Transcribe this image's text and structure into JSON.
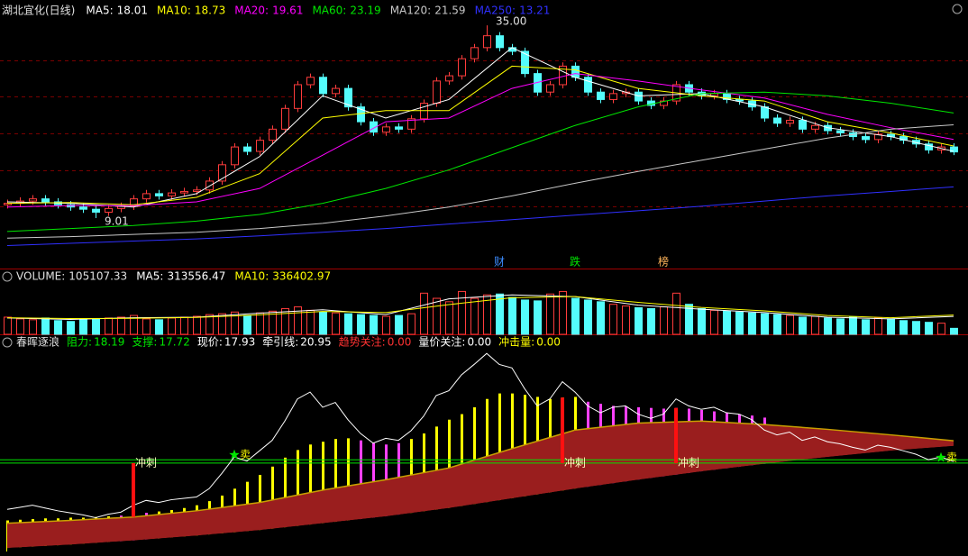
{
  "chart_data": [
    {
      "type": "candlestick",
      "title": "湖北宜化(日线)",
      "open": [
        10.8,
        11.0,
        11.3,
        11.6,
        11.2,
        10.8,
        10.5,
        10.2,
        9.8,
        10.3,
        10.6,
        11.6,
        12.3,
        12.0,
        12.4,
        12.6,
        12.8,
        14.0,
        16.2,
        18.6,
        18.0,
        19.5,
        21.0,
        23.8,
        27.0,
        28.0,
        25.8,
        26.5,
        24.0,
        22.0,
        20.6,
        21.3,
        21.0,
        22.4,
        24.5,
        27.5,
        28.2,
        30.5,
        32.0,
        33.6,
        32.0,
        31.5,
        28.5,
        26.0,
        27.0,
        29.5,
        28.0,
        26.0,
        25.0,
        25.8,
        26.0,
        24.8,
        24.2,
        24.8,
        27.0,
        26.0,
        25.5,
        25.8,
        25.0,
        24.8,
        24.0,
        22.5,
        21.8,
        22.2,
        21.0,
        21.5,
        20.8,
        20.5,
        20.0,
        19.6,
        20.3,
        20.0,
        19.5,
        19.0,
        18.2,
        18.6
      ],
      "close": [
        11.0,
        11.3,
        11.6,
        11.2,
        10.8,
        10.5,
        10.2,
        9.8,
        10.3,
        10.6,
        11.6,
        12.3,
        12.0,
        12.4,
        12.6,
        12.8,
        14.0,
        16.2,
        18.6,
        18.0,
        19.5,
        21.0,
        23.8,
        27.0,
        28.0,
        25.8,
        26.5,
        24.0,
        22.0,
        20.6,
        21.3,
        21.0,
        22.4,
        24.5,
        27.5,
        28.2,
        30.5,
        32.0,
        33.6,
        32.0,
        31.5,
        28.5,
        26.0,
        27.0,
        29.5,
        28.0,
        26.0,
        25.0,
        25.8,
        26.0,
        24.8,
        24.2,
        24.8,
        27.0,
        26.0,
        25.5,
        25.8,
        25.0,
        24.8,
        24.0,
        22.5,
        21.8,
        22.2,
        21.0,
        21.5,
        20.8,
        20.5,
        20.0,
        19.6,
        20.3,
        20.0,
        19.5,
        19.0,
        18.2,
        18.6,
        17.93
      ],
      "high": [
        11.5,
        11.8,
        12.1,
        12.1,
        11.7,
        11.3,
        11.0,
        10.7,
        10.8,
        11.1,
        12.1,
        12.8,
        12.8,
        12.9,
        13.1,
        13.3,
        14.5,
        16.7,
        19.1,
        19.1,
        20.0,
        21.5,
        24.3,
        27.5,
        28.5,
        28.5,
        27.0,
        27.0,
        24.5,
        22.5,
        21.8,
        21.8,
        22.9,
        25.0,
        28.0,
        28.7,
        31.0,
        32.5,
        35.0,
        34.1,
        32.5,
        32.0,
        29.0,
        27.5,
        30.0,
        30.0,
        28.5,
        26.5,
        26.3,
        26.5,
        26.5,
        25.3,
        25.3,
        27.5,
        27.5,
        26.5,
        26.3,
        26.3,
        25.5,
        25.3,
        24.5,
        23.0,
        22.7,
        22.7,
        22.0,
        22.0,
        21.3,
        21.0,
        20.5,
        20.8,
        20.8,
        20.5,
        20.0,
        19.5,
        19.1,
        19.1
      ],
      "low": [
        10.3,
        10.5,
        10.8,
        10.7,
        10.3,
        10.0,
        9.7,
        9.01,
        9.3,
        9.8,
        10.1,
        11.1,
        11.5,
        11.5,
        11.9,
        12.1,
        12.3,
        13.5,
        15.7,
        17.5,
        17.5,
        19.0,
        20.5,
        23.3,
        26.5,
        25.3,
        25.3,
        23.5,
        21.5,
        20.1,
        20.1,
        20.5,
        20.5,
        21.9,
        24.0,
        27.0,
        27.7,
        30.0,
        31.5,
        31.5,
        31.0,
        28.0,
        25.5,
        25.5,
        26.5,
        27.5,
        25.5,
        24.5,
        24.5,
        25.3,
        24.3,
        23.7,
        23.7,
        24.3,
        25.5,
        25.0,
        25.0,
        24.5,
        24.3,
        23.5,
        22.0,
        21.3,
        21.3,
        20.5,
        20.5,
        20.3,
        20.0,
        19.5,
        19.1,
        19.1,
        19.5,
        19.0,
        18.5,
        17.7,
        17.7,
        17.5
      ],
      "up_color": "#ff3c3c",
      "down_color": "#54fcfc",
      "ylim": [
        2.2,
        36.6
      ],
      "grid_lines": [
        30.3,
        25.4,
        20.4,
        15.5,
        10.6
      ],
      "series": [
        {
          "label": "MA5:",
          "value": 18.01,
          "color": "#ffffff",
          "x": [
            0,
            5,
            10,
            15,
            20,
            25,
            30,
            35,
            40,
            45,
            50,
            55,
            60,
            65,
            70,
            75
          ],
          "values": [
            11.2,
            11.0,
            10.5,
            12.3,
            17.3,
            25.5,
            22.5,
            25.0,
            32.0,
            28.0,
            25.5,
            25.8,
            24.0,
            21.2,
            20.0,
            18.01
          ]
        },
        {
          "label": "MA10:",
          "value": 18.73,
          "color": "#ffff00",
          "x": [
            0,
            5,
            10,
            15,
            20,
            25,
            30,
            35,
            40,
            45,
            50,
            55,
            60,
            65,
            70,
            75
          ],
          "values": [
            11.0,
            11.1,
            10.8,
            11.8,
            15.0,
            22.5,
            23.5,
            23.5,
            29.5,
            29.0,
            26.5,
            25.5,
            24.8,
            22.0,
            20.5,
            18.73
          ]
        },
        {
          "label": "MA20:",
          "value": 19.61,
          "color": "#ff00ff",
          "x": [
            0,
            5,
            10,
            15,
            20,
            25,
            30,
            35,
            40,
            45,
            50,
            55,
            60,
            65,
            70,
            75
          ],
          "values": [
            10.5,
            10.7,
            10.7,
            11.2,
            13.0,
            17.5,
            22.0,
            22.5,
            26.5,
            28.5,
            27.5,
            26.3,
            25.2,
            23.0,
            21.2,
            19.61
          ]
        },
        {
          "label": "MA60:",
          "value": 23.19,
          "color": "#00e600",
          "x": [
            0,
            5,
            10,
            15,
            20,
            25,
            30,
            35,
            40,
            45,
            50,
            55,
            60,
            65,
            70,
            75
          ],
          "values": [
            7.2,
            7.6,
            8.0,
            8.6,
            9.5,
            11.0,
            13.0,
            15.5,
            18.5,
            21.5,
            24.0,
            25.8,
            26.0,
            25.5,
            24.5,
            23.19
          ]
        },
        {
          "label": "MA120:",
          "value": 21.59,
          "color": "#c8c8c8",
          "x": [
            0,
            5,
            10,
            15,
            20,
            25,
            30,
            35,
            40,
            45,
            50,
            55,
            60,
            65,
            70,
            75
          ],
          "values": [
            6.3,
            6.5,
            6.8,
            7.1,
            7.6,
            8.3,
            9.3,
            10.5,
            12.0,
            13.7,
            15.3,
            16.8,
            18.3,
            19.8,
            21.0,
            21.59
          ]
        },
        {
          "label": "MA250:",
          "value": 13.21,
          "color": "#3030ff",
          "x": [
            0,
            5,
            10,
            15,
            20,
            25,
            30,
            35,
            40,
            45,
            50,
            55,
            60,
            65,
            70,
            75
          ],
          "values": [
            5.3,
            5.6,
            5.9,
            6.2,
            6.6,
            7.1,
            7.6,
            8.2,
            8.8,
            9.4,
            10.0,
            10.6,
            11.3,
            12.0,
            12.6,
            13.21
          ]
        }
      ],
      "annotations": [
        {
          "index": 38,
          "value": 35,
          "label": "35.00"
        },
        {
          "index": 7,
          "value": 9.01
        }
      ],
      "events": [
        {
          "index": 39,
          "label": "财",
          "color": "#3c8cff"
        },
        {
          "index": 45,
          "label": "跌",
          "color": "#00e600"
        },
        {
          "index": 52,
          "label": "榜",
          "color": "#ffb45a"
        }
      ]
    },
    {
      "type": "bar",
      "title": "VOLUME:",
      "value": 105107.33,
      "values": [
        300000,
        270000,
        255000,
        285000,
        240000,
        225000,
        255000,
        270000,
        285000,
        300000,
        330000,
        270000,
        255000,
        285000,
        300000,
        315000,
        345000,
        360000,
        390000,
        330000,
        375000,
        405000,
        450000,
        480000,
        420000,
        390000,
        375000,
        360000,
        345000,
        330000,
        315000,
        330000,
        360000,
        720000,
        630000,
        570000,
        750000,
        630000,
        690000,
        705000,
        645000,
        600000,
        585000,
        705000,
        750000,
        630000,
        600000,
        570000,
        525000,
        495000,
        465000,
        450000,
        480000,
        720000,
        525000,
        450000,
        420000,
        405000,
        390000,
        375000,
        360000,
        345000,
        330000,
        300000,
        315000,
        285000,
        270000,
        300000,
        255000,
        285000,
        270000,
        240000,
        225000,
        210000,
        195000,
        105107.33
      ],
      "ylim": [
        0,
        930000
      ],
      "series": [
        {
          "label": "MA5:",
          "value": 313556.47,
          "color": "#ffffff",
          "x": [
            0,
            5,
            10,
            15,
            20,
            25,
            30,
            35,
            40,
            45,
            50,
            55,
            60,
            65,
            70,
            75
          ],
          "values": [
            285000,
            260000,
            290000,
            300000,
            370000,
            430000,
            345000,
            620000,
            690000,
            660000,
            510000,
            440000,
            380000,
            300000,
            270000,
            313556.47
          ]
        },
        {
          "label": "MA10:",
          "value": 336402.97,
          "color": "#ffff00",
          "x": [
            0,
            5,
            10,
            15,
            20,
            25,
            30,
            35,
            40,
            45,
            50,
            55,
            60,
            65,
            70,
            75
          ],
          "values": [
            290000,
            275000,
            280000,
            295000,
            340000,
            400000,
            380000,
            520000,
            640000,
            660000,
            560000,
            470000,
            410000,
            330000,
            290000,
            336402.97
          ]
        }
      ]
    },
    {
      "type": "area",
      "title": "春晖逐浪",
      "ylim": [
        4.9,
        34.8
      ],
      "items": [
        {
          "label": "阻力:",
          "value": 18.19,
          "color": "#00e600",
          "line": true
        },
        {
          "label": "支撑:",
          "value": 17.72,
          "color": "#00e600",
          "line": true
        },
        {
          "label": "现价:",
          "value": 17.93,
          "color": "#ffffff"
        },
        {
          "label": "牵引线:",
          "value": 20.95,
          "color": "#ffffff"
        },
        {
          "label": "趋势关注:",
          "value": 0,
          "value_label": "0.00",
          "color": "#ff3232"
        },
        {
          "label": "量价关注:",
          "value": 0,
          "value_label": "0.00",
          "color": "#ffffff"
        },
        {
          "label": "冲击量:",
          "value": 0,
          "value_label": "0.00",
          "color": "#ffff00"
        }
      ],
      "bars": [
        {
          "color": "#ffff00",
          "values": [
            9.4,
            9.5,
            9.6,
            9.7,
            9.7,
            9.8,
            9.8,
            9.9,
            10.0,
            null,
            null,
            null,
            10.7,
            10.9,
            11.2,
            11.6,
            12.2,
            13.0,
            14.0,
            15.0,
            16.0,
            17.2,
            18.5,
            19.6,
            20.4,
            20.8,
            21.2,
            21.3,
            null,
            null,
            null,
            null,
            21.2,
            22.0,
            23.0,
            24.0,
            24.8,
            25.8,
            27.0,
            27.8,
            27.8,
            27.6,
            27.3,
            27.0,
            27.2,
            27.3,
            null,
            null,
            null,
            null,
            null,
            null,
            null,
            null,
            null,
            null,
            null,
            null,
            null,
            null,
            null
          ]
        },
        {
          "color": "#ff40ff",
          "values": [
            null,
            null,
            null,
            null,
            null,
            null,
            null,
            null,
            null,
            10.1,
            10.3,
            10.5,
            null,
            null,
            null,
            null,
            null,
            null,
            null,
            null,
            null,
            null,
            null,
            null,
            null,
            null,
            null,
            null,
            21.0,
            20.6,
            20.4,
            20.6,
            null,
            null,
            null,
            null,
            null,
            null,
            null,
            null,
            null,
            null,
            null,
            null,
            null,
            null,
            26.6,
            26.3,
            26.0,
            25.9,
            25.8,
            25.7,
            25.6,
            25.7,
            25.6,
            25.4,
            25.2,
            25.0,
            24.8,
            24.6,
            24.3
          ]
        }
      ],
      "area_color": "#9a1e1e",
      "upper_color": "#c8a000",
      "area_x": [
        0,
        5,
        10,
        15,
        20,
        25,
        30,
        35,
        40,
        45,
        50,
        55,
        60,
        65,
        70,
        75
      ],
      "upper": [
        9.0,
        9.4,
        9.9,
        10.8,
        12.0,
        13.8,
        15.3,
        17.0,
        19.8,
        22.5,
        23.5,
        23.8,
        23.3,
        22.6,
        21.8,
        20.95
      ],
      "lower": [
        5.4,
        5.9,
        6.5,
        7.2,
        8.0,
        9.0,
        10.0,
        11.2,
        12.6,
        14.0,
        15.3,
        16.5,
        17.6,
        18.6,
        19.5,
        20.2
      ],
      "impulses": [
        {
          "index": 10,
          "from": 17.7,
          "to": 9.9,
          "label": "冲刺"
        },
        {
          "index": 44,
          "from": 17.7,
          "to": 27.2,
          "label": "冲刺"
        },
        {
          "index": 53,
          "from": 17.7,
          "to": 25.7,
          "label": "冲刺"
        }
      ],
      "sells": [
        {
          "index": 18,
          "value": 18.9,
          "label": "卖"
        },
        {
          "index": 74,
          "value": 18.5,
          "label": "卖"
        }
      ]
    }
  ]
}
